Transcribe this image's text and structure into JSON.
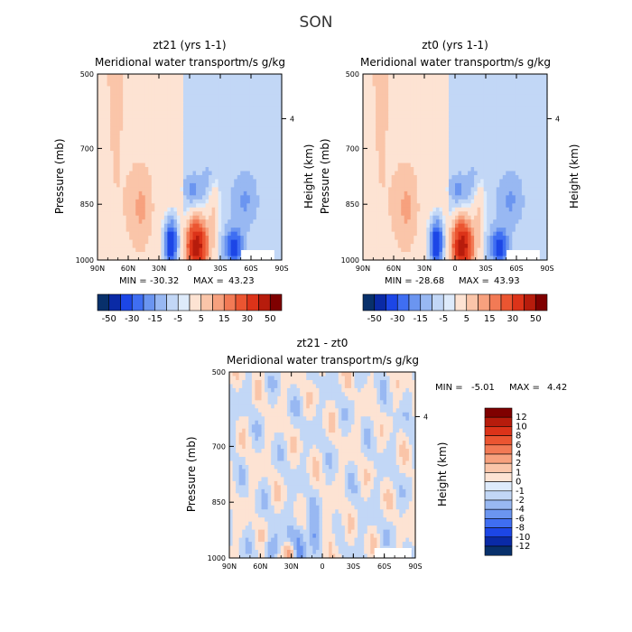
{
  "figure": {
    "title": "SON"
  },
  "colors": {
    "neg": [
      "#08306b",
      "#0a2aa6",
      "#1c46e6",
      "#3f6ef2",
      "#6b95f0",
      "#98b8f2",
      "#c2d7f6",
      "#deebfb"
    ],
    "pos": [
      "#fde3d3",
      "#fac5a9",
      "#f7a17e",
      "#f27a55",
      "#eb5531",
      "#dc3319",
      "#b71c0c",
      "#7f0000"
    ]
  },
  "chart_data": [
    {
      "id": "zt21",
      "type": "heatmap",
      "title": "zt21 (yrs 1-1)",
      "subtitle": "Meridional water transport",
      "units": "m/s g/kg",
      "xlabel": "",
      "ylabel": "Pressure (mb)",
      "ylabel_right": "Height (km)",
      "xticks": [
        "90N",
        "60N",
        "30N",
        "0",
        "30S",
        "60S",
        "90S"
      ],
      "yticks": [
        "500",
        "700",
        "850",
        "1000"
      ],
      "right_ticks": [
        "4"
      ],
      "xlim": [
        90,
        -90
      ],
      "ylim": [
        1000,
        500
      ],
      "min_label": "MIN =",
      "min": "-30.32",
      "max_label": "MAX =",
      "max": "43.23",
      "colorbar": {
        "levels": [
          "-50",
          "-30",
          "-15",
          "-5",
          "5",
          "15",
          "30",
          "50"
        ]
      }
    },
    {
      "id": "zt0",
      "type": "heatmap",
      "title": "zt0 (yrs 1-1)",
      "subtitle": "Meridional water transport",
      "units": "m/s g/kg",
      "xlabel": "",
      "ylabel": "Pressure (mb)",
      "ylabel_right": "Height (km)",
      "xticks": [
        "90N",
        "60N",
        "30N",
        "0",
        "30S",
        "60S",
        "90S"
      ],
      "yticks": [
        "500",
        "700",
        "850",
        "1000"
      ],
      "right_ticks": [
        "4"
      ],
      "xlim": [
        90,
        -90
      ],
      "ylim": [
        1000,
        500
      ],
      "min_label": "MIN =",
      "min": "-28.68",
      "max_label": "MAX =",
      "max": "43.93",
      "colorbar": {
        "levels": [
          "-50",
          "-30",
          "-15",
          "-5",
          "5",
          "15",
          "30",
          "50"
        ]
      }
    },
    {
      "id": "diff",
      "type": "heatmap",
      "title": "zt21 - zt0",
      "subtitle": "Meridional water transport",
      "units": "m/s g/kg",
      "xlabel": "",
      "ylabel": "Pressure (mb)",
      "ylabel_right": "Height (km)",
      "xticks": [
        "90N",
        "60N",
        "30N",
        "0",
        "30S",
        "60S",
        "90S"
      ],
      "yticks": [
        "500",
        "700",
        "850",
        "1000"
      ],
      "right_ticks": [
        "4"
      ],
      "xlim": [
        90,
        -90
      ],
      "ylim": [
        1000,
        500
      ],
      "min_label": "MIN =",
      "min": "-5.01",
      "max_label": "MAX =",
      "max": "4.42",
      "colorbar": {
        "levels": [
          "12",
          "10",
          "8",
          "6",
          "4",
          "2",
          "1",
          "0",
          "-1",
          "-2",
          "-4",
          "-6",
          "-8",
          "-10",
          "-12"
        ]
      }
    }
  ]
}
